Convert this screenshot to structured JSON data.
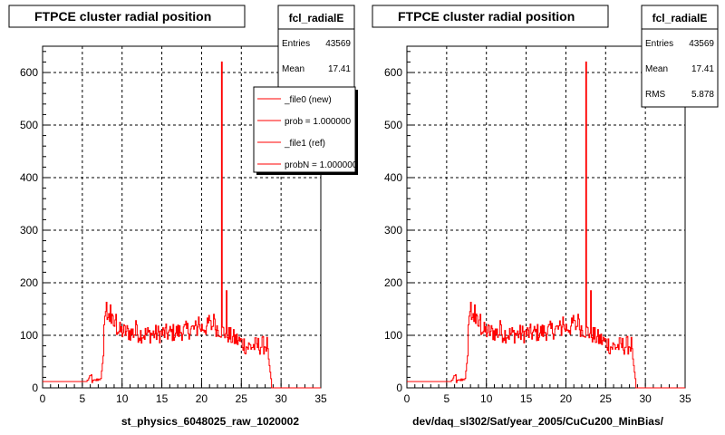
{
  "colors": {
    "histogram": "#ff0000",
    "frame": "#000000",
    "grid": "#000000",
    "background": "#ffffff"
  },
  "chart_data": [
    {
      "type": "histogram-step",
      "title": "FTPCE cluster radial position",
      "xlabel": "st_physics_6048025_raw_1020002",
      "ylabel": "",
      "xlim": [
        0,
        35
      ],
      "ylim": [
        0,
        650
      ],
      "xticks": [
        "0",
        "5",
        "10",
        "15",
        "20",
        "25",
        "30",
        "35"
      ],
      "yticks": [
        "0",
        "100",
        "200",
        "300",
        "400",
        "500",
        "600"
      ],
      "grid": true,
      "stats": {
        "name": "fcl_radialE",
        "rows": [
          {
            "label": "Entries",
            "value": "43569"
          },
          {
            "label": "Mean",
            "value": "17.41"
          }
        ]
      },
      "legend": {
        "placement": "top-right",
        "entries": [
          "_file0 (new)",
          "prob = 1.000000",
          "_file1 (ref)",
          "probN = 1.000000"
        ]
      }
    },
    {
      "type": "histogram-step",
      "title": "FTPCE cluster radial position",
      "xlabel": "dev/daq_sl302/Sat/year_2005/CuCu200_MinBias/",
      "ylabel": "",
      "xlim": [
        0,
        35
      ],
      "ylim": [
        0,
        650
      ],
      "xticks": [
        "0",
        "5",
        "10",
        "15",
        "20",
        "25",
        "30",
        "35"
      ],
      "yticks": [
        "0",
        "100",
        "200",
        "300",
        "400",
        "500",
        "600"
      ],
      "grid": true,
      "stats": {
        "name": "fcl_radialE",
        "rows": [
          {
            "label": "Entries",
            "value": "43569"
          },
          {
            "label": "Mean",
            "value": "17.41"
          },
          {
            "label": "RMS",
            "value": "5.878"
          }
        ]
      }
    }
  ],
  "shape": {
    "x_step": 0.1,
    "segments": [
      {
        "x": [
          0,
          5.5
        ],
        "y": [
          12,
          12
        ]
      },
      {
        "x": [
          5.5,
          6.2
        ],
        "y": [
          12,
          26
        ]
      },
      {
        "x": [
          6.2,
          7.3
        ],
        "y": [
          12,
          18
        ]
      },
      {
        "x": [
          7.3,
          7.7
        ],
        "y": [
          18,
          75
        ]
      },
      {
        "x": [
          7.7,
          8.2
        ],
        "y": [
          120,
          150
        ]
      },
      {
        "x": [
          8.2,
          9.5
        ],
        "y": [
          135,
          110
        ]
      },
      {
        "x": [
          9.5,
          13
        ],
        "y": [
          108,
          102
        ]
      },
      {
        "x": [
          13,
          16
        ],
        "y": [
          102,
          104
        ]
      },
      {
        "x": [
          16,
          19
        ],
        "y": [
          104,
          112
        ]
      },
      {
        "x": [
          19,
          21.5
        ],
        "y": [
          112,
          118
        ]
      },
      {
        "x": [
          21.5,
          23.5
        ],
        "y": [
          118,
          100
        ]
      },
      {
        "x": [
          23.5,
          25.5
        ],
        "y": [
          98,
          82
        ]
      },
      {
        "x": [
          25.5,
          28.4
        ],
        "y": [
          78,
          82
        ]
      },
      {
        "x": [
          28.4,
          28.8
        ],
        "y": [
          55,
          5
        ]
      },
      {
        "x": [
          28.8,
          35
        ],
        "y": [
          0,
          0
        ]
      }
    ],
    "spikes": [
      {
        "x": 8.0,
        "y": 163
      },
      {
        "x": 8.5,
        "y": 158
      },
      {
        "x": 9.2,
        "y": 140
      },
      {
        "x": 11.7,
        "y": 128
      },
      {
        "x": 19.6,
        "y": 135
      },
      {
        "x": 20.9,
        "y": 138
      },
      {
        "x": 21.5,
        "y": 140
      },
      {
        "x": 22.5,
        "y": 620
      },
      {
        "x": 23.1,
        "y": 185
      }
    ]
  }
}
